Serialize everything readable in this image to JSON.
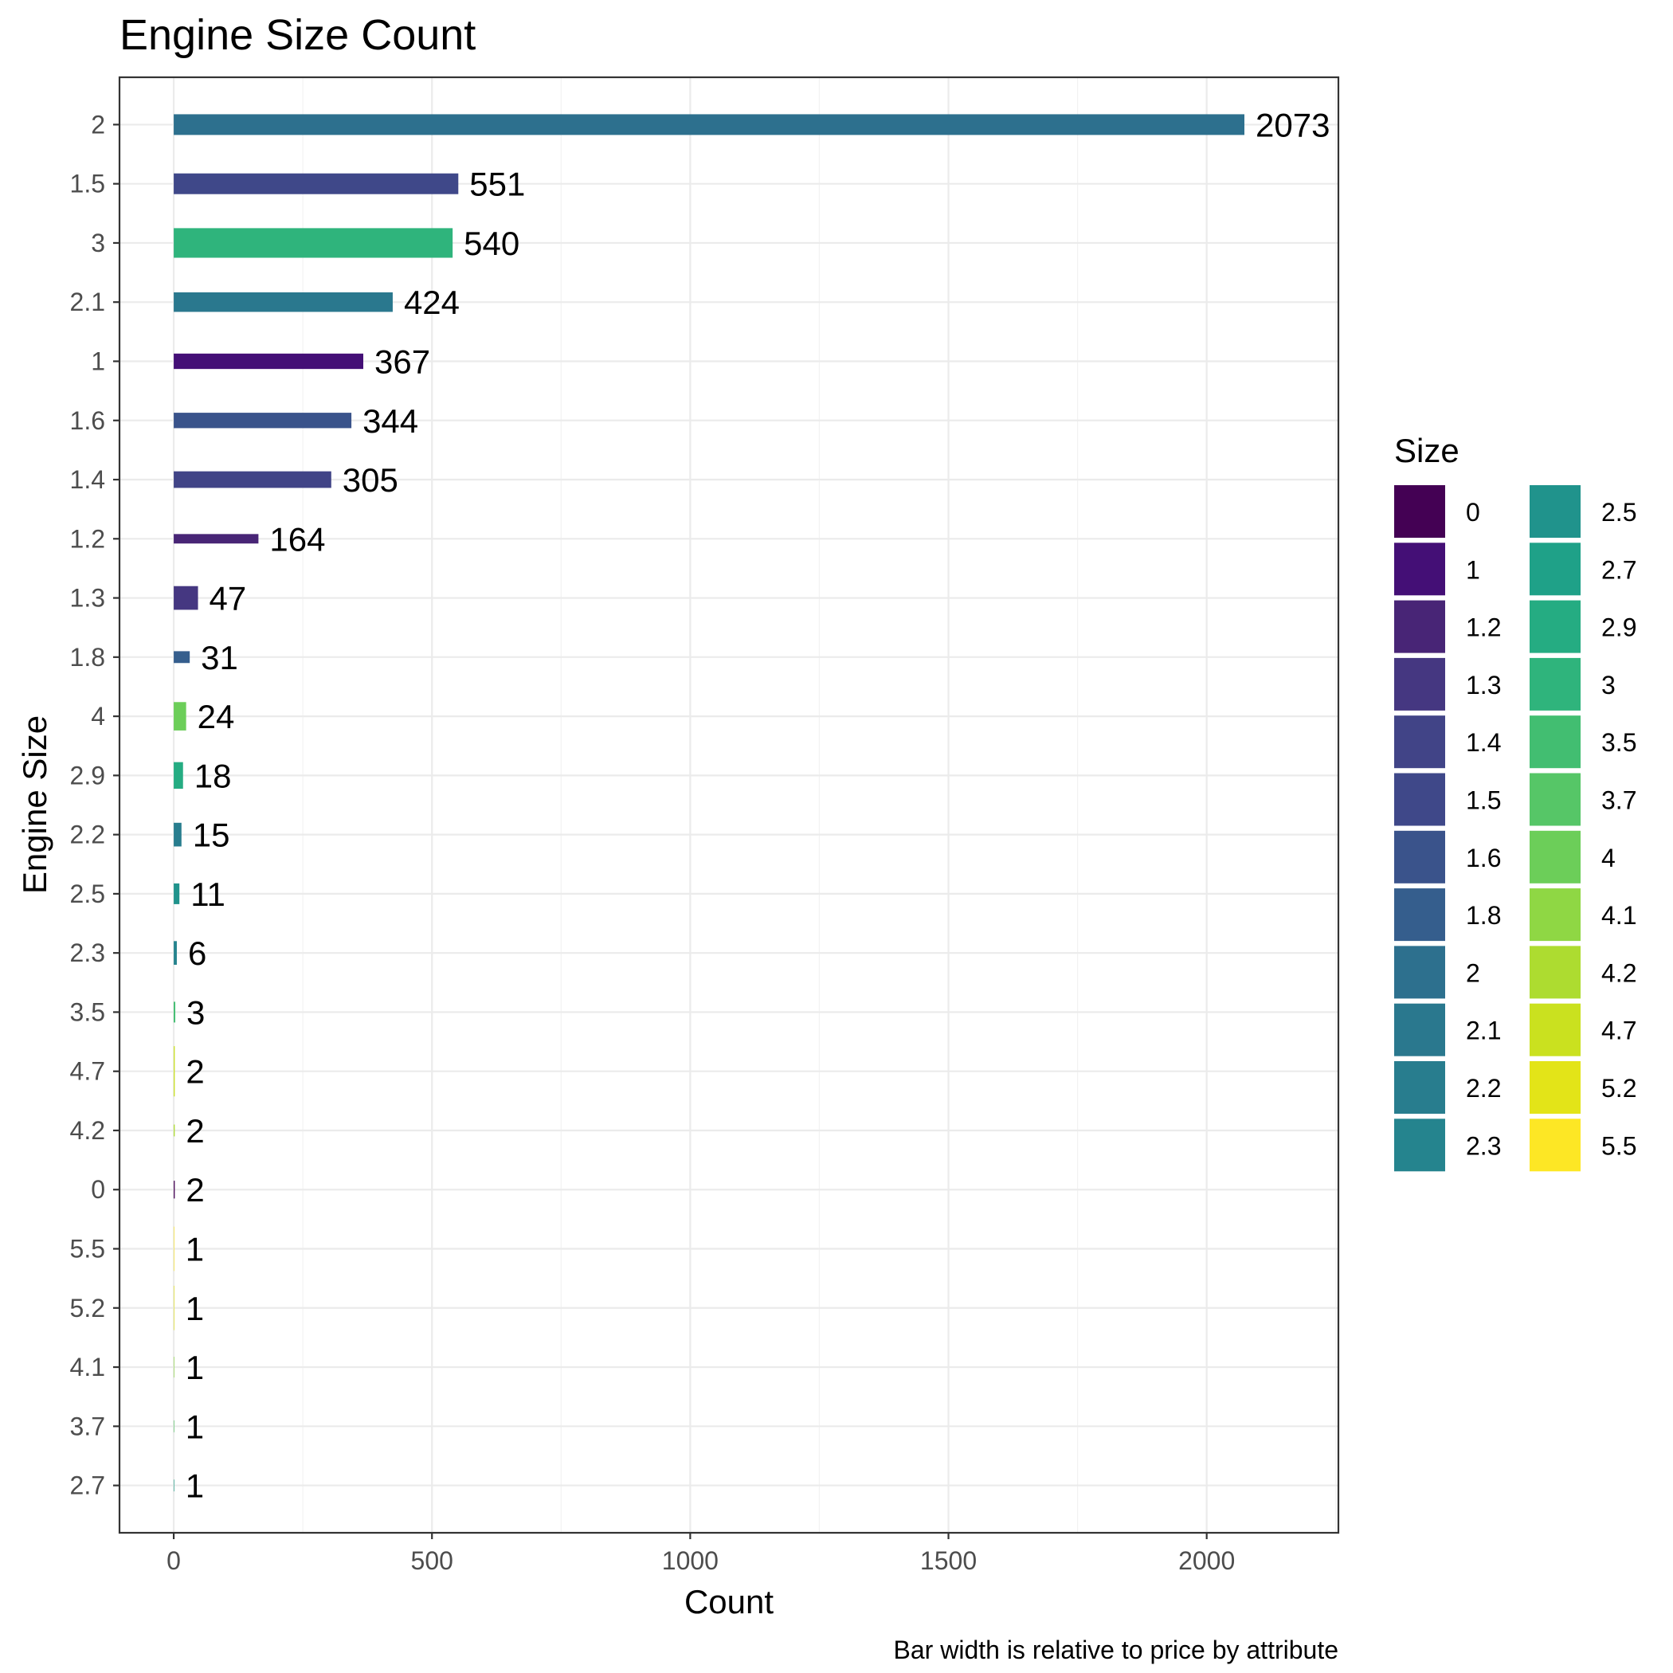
{
  "chart_data": {
    "type": "bar",
    "orientation": "horizontal",
    "title": "Engine Size Count",
    "xlabel": "Count",
    "ylabel": "Engine Size",
    "caption": "Bar width is relative to price by attribute",
    "xlim": [
      -105,
      2255
    ],
    "xticks": [
      0,
      500,
      1000,
      1500,
      2000
    ],
    "grid": true,
    "legend_title": "Size",
    "legend_position": "right",
    "categories": [
      "2",
      "1.5",
      "3",
      "2.1",
      "1",
      "1.6",
      "1.4",
      "1.2",
      "1.3",
      "1.8",
      "4",
      "2.9",
      "2.2",
      "2.5",
      "2.3",
      "3.5",
      "4.7",
      "4.2",
      "0",
      "5.5",
      "5.2",
      "4.1",
      "3.7",
      "2.7"
    ],
    "values": [
      2073,
      551,
      540,
      424,
      367,
      344,
      305,
      164,
      47,
      31,
      24,
      18,
      15,
      11,
      6,
      3,
      2,
      2,
      2,
      1,
      1,
      1,
      1,
      1
    ],
    "bar_widths": [
      0.35,
      0.35,
      0.5,
      0.33,
      0.26,
      0.26,
      0.28,
      0.16,
      0.4,
      0.2,
      0.48,
      0.45,
      0.4,
      0.35,
      0.4,
      0.35,
      0.85,
      0.2,
      0.3,
      0.75,
      0.75,
      0.35,
      0.2,
      0.2
    ],
    "colors": [
      "#2D708E",
      "#3F4889",
      "#2FB47C",
      "#2A788E",
      "#440F76",
      "#3A538B",
      "#414487",
      "#482576",
      "#453781",
      "#355E8D",
      "#6CCE59",
      "#25AC82",
      "#287D8E",
      "#20938C",
      "#25848E",
      "#42BE71",
      "#CAE11F",
      "#ADDC30",
      "#440154",
      "#FDE725",
      "#E3E418",
      "#8FD744",
      "#56C667",
      "#1FA188"
    ]
  },
  "legend": {
    "col1": [
      {
        "label": "0",
        "color": "#440154"
      },
      {
        "label": "1",
        "color": "#440F76"
      },
      {
        "label": "1.2",
        "color": "#482576"
      },
      {
        "label": "1.3",
        "color": "#453781"
      },
      {
        "label": "1.4",
        "color": "#414487"
      },
      {
        "label": "1.5",
        "color": "#3F4889"
      },
      {
        "label": "1.6",
        "color": "#3A538B"
      },
      {
        "label": "1.8",
        "color": "#355E8D"
      },
      {
        "label": "2",
        "color": "#2D708E"
      },
      {
        "label": "2.1",
        "color": "#2A788E"
      },
      {
        "label": "2.2",
        "color": "#287D8E"
      },
      {
        "label": "2.3",
        "color": "#25848E"
      }
    ],
    "col2": [
      {
        "label": "2.5",
        "color": "#20938C"
      },
      {
        "label": "2.7",
        "color": "#1FA188"
      },
      {
        "label": "2.9",
        "color": "#25AC82"
      },
      {
        "label": "3",
        "color": "#2FB47C"
      },
      {
        "label": "3.5",
        "color": "#42BE71"
      },
      {
        "label": "3.7",
        "color": "#56C667"
      },
      {
        "label": "4",
        "color": "#6CCE59"
      },
      {
        "label": "4.1",
        "color": "#8FD744"
      },
      {
        "label": "4.2",
        "color": "#ADDC30"
      },
      {
        "label": "4.7",
        "color": "#CAE11F"
      },
      {
        "label": "5.2",
        "color": "#E3E418"
      },
      {
        "label": "5.5",
        "color": "#FDE725"
      }
    ]
  }
}
